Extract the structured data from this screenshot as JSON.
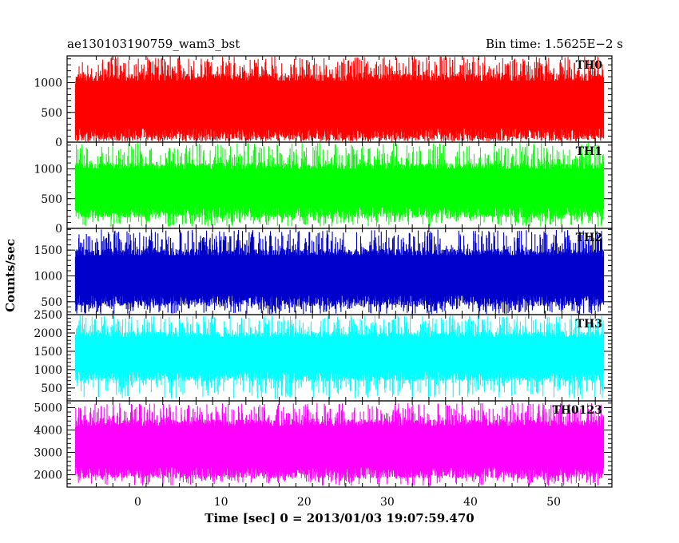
{
  "header": {
    "left_title": "ae130103190759_wam3_bst",
    "right_title": "Bin time: 1.5625E−2 s"
  },
  "axes": {
    "ylabel": "Counts/sec",
    "xlabel": "Time [sec] 0 = 2013/01/03 19:07:59.470"
  },
  "chart_data": {
    "type": "line",
    "x_range": [
      -8.5,
      57
    ],
    "x_data_range": [
      -7.5,
      56
    ],
    "bin_time": 0.015625,
    "x_ticks": [
      0,
      10,
      20,
      30,
      40,
      50
    ],
    "panels": [
      {
        "name": "TH0",
        "color": "#ff0000",
        "ylim": [
          0,
          1450
        ],
        "y_ticks": [
          0,
          500,
          1000
        ],
        "band_low": 130,
        "band_high": 1080,
        "spike_min": 10,
        "spike_max": 1440
      },
      {
        "name": "TH1",
        "color": "#00ff00",
        "ylim": [
          0,
          1450
        ],
        "y_ticks": [
          0,
          500,
          1000
        ],
        "band_low": 270,
        "band_high": 1040,
        "spike_min": 30,
        "spike_max": 1440
      },
      {
        "name": "TH2",
        "color": "#0000cc",
        "ylim": [
          250,
          1920
        ],
        "y_ticks": [
          500,
          1000,
          1500
        ],
        "band_low": 520,
        "band_high": 1450,
        "spike_min": 260,
        "spike_max": 1900
      },
      {
        "name": "TH3",
        "color": "#00ffff",
        "ylim": [
          150,
          2500
        ],
        "y_ticks": [
          500,
          1000,
          1500,
          2000,
          2500
        ],
        "band_low": 820,
        "band_high": 1950,
        "spike_min": 200,
        "spike_max": 2480
      },
      {
        "name": "TH0123",
        "color": "#ff00ff",
        "ylim": [
          1450,
          5300
        ],
        "y_ticks": [
          2000,
          3000,
          4000,
          5000
        ],
        "band_low": 2100,
        "band_high": 4300,
        "spike_min": 1500,
        "spike_max": 5200
      }
    ]
  }
}
